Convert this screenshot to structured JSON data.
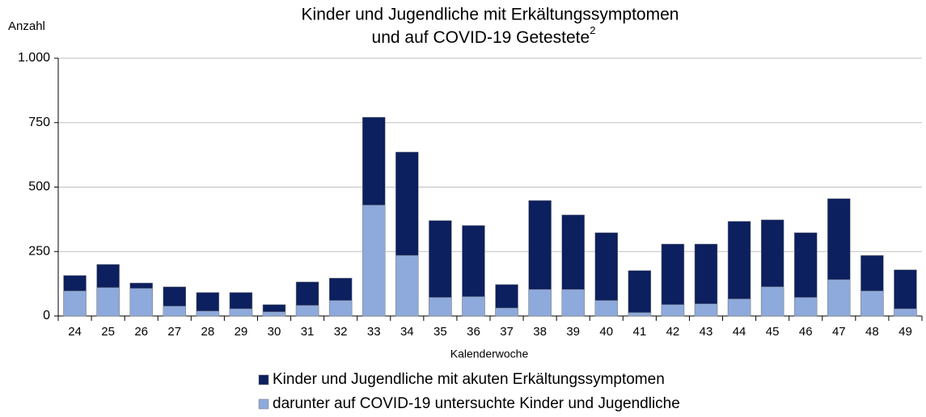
{
  "chart_data": {
    "type": "bar",
    "overlay": true,
    "title": [
      "Kinder und Jugendliche mit Erkältungssymptomen",
      "und auf COVID-19 Getestete"
    ],
    "title_note": "2",
    "y_label": "Anzahl",
    "x_label": "Kalenderwoche",
    "categories": [
      "24",
      "25",
      "26",
      "27",
      "28",
      "29",
      "30",
      "31",
      "32",
      "33",
      "34",
      "35",
      "36",
      "37",
      "38",
      "39",
      "40",
      "41",
      "42",
      "43",
      "44",
      "45",
      "46",
      "47",
      "48",
      "49"
    ],
    "series": [
      {
        "name": "Kinder und Jugendliche mit akuten Erkältungssymptomen",
        "color": "#0c1f5e",
        "values": [
          157,
          200,
          128,
          113,
          91,
          91,
          44,
          132,
          147,
          771,
          636,
          370,
          351,
          122,
          448,
          392,
          323,
          176,
          279,
          279,
          367,
          373,
          323,
          455,
          235,
          179
        ]
      },
      {
        "name": "darunter auf COVID-19 untersuchte Kinder und Jugendliche",
        "color": "#8eaadc",
        "values": [
          97,
          110,
          107,
          38,
          19,
          28,
          16,
          41,
          60,
          430,
          235,
          72,
          75,
          31,
          103,
          103,
          60,
          13,
          44,
          47,
          66,
          113,
          72,
          141,
          97,
          28
        ]
      }
    ],
    "ylim": [
      0,
      1000
    ],
    "yticks": [
      0,
      250,
      500,
      750,
      {
        "value": 1000,
        "label": "1.000"
      }
    ],
    "grid": true
  }
}
